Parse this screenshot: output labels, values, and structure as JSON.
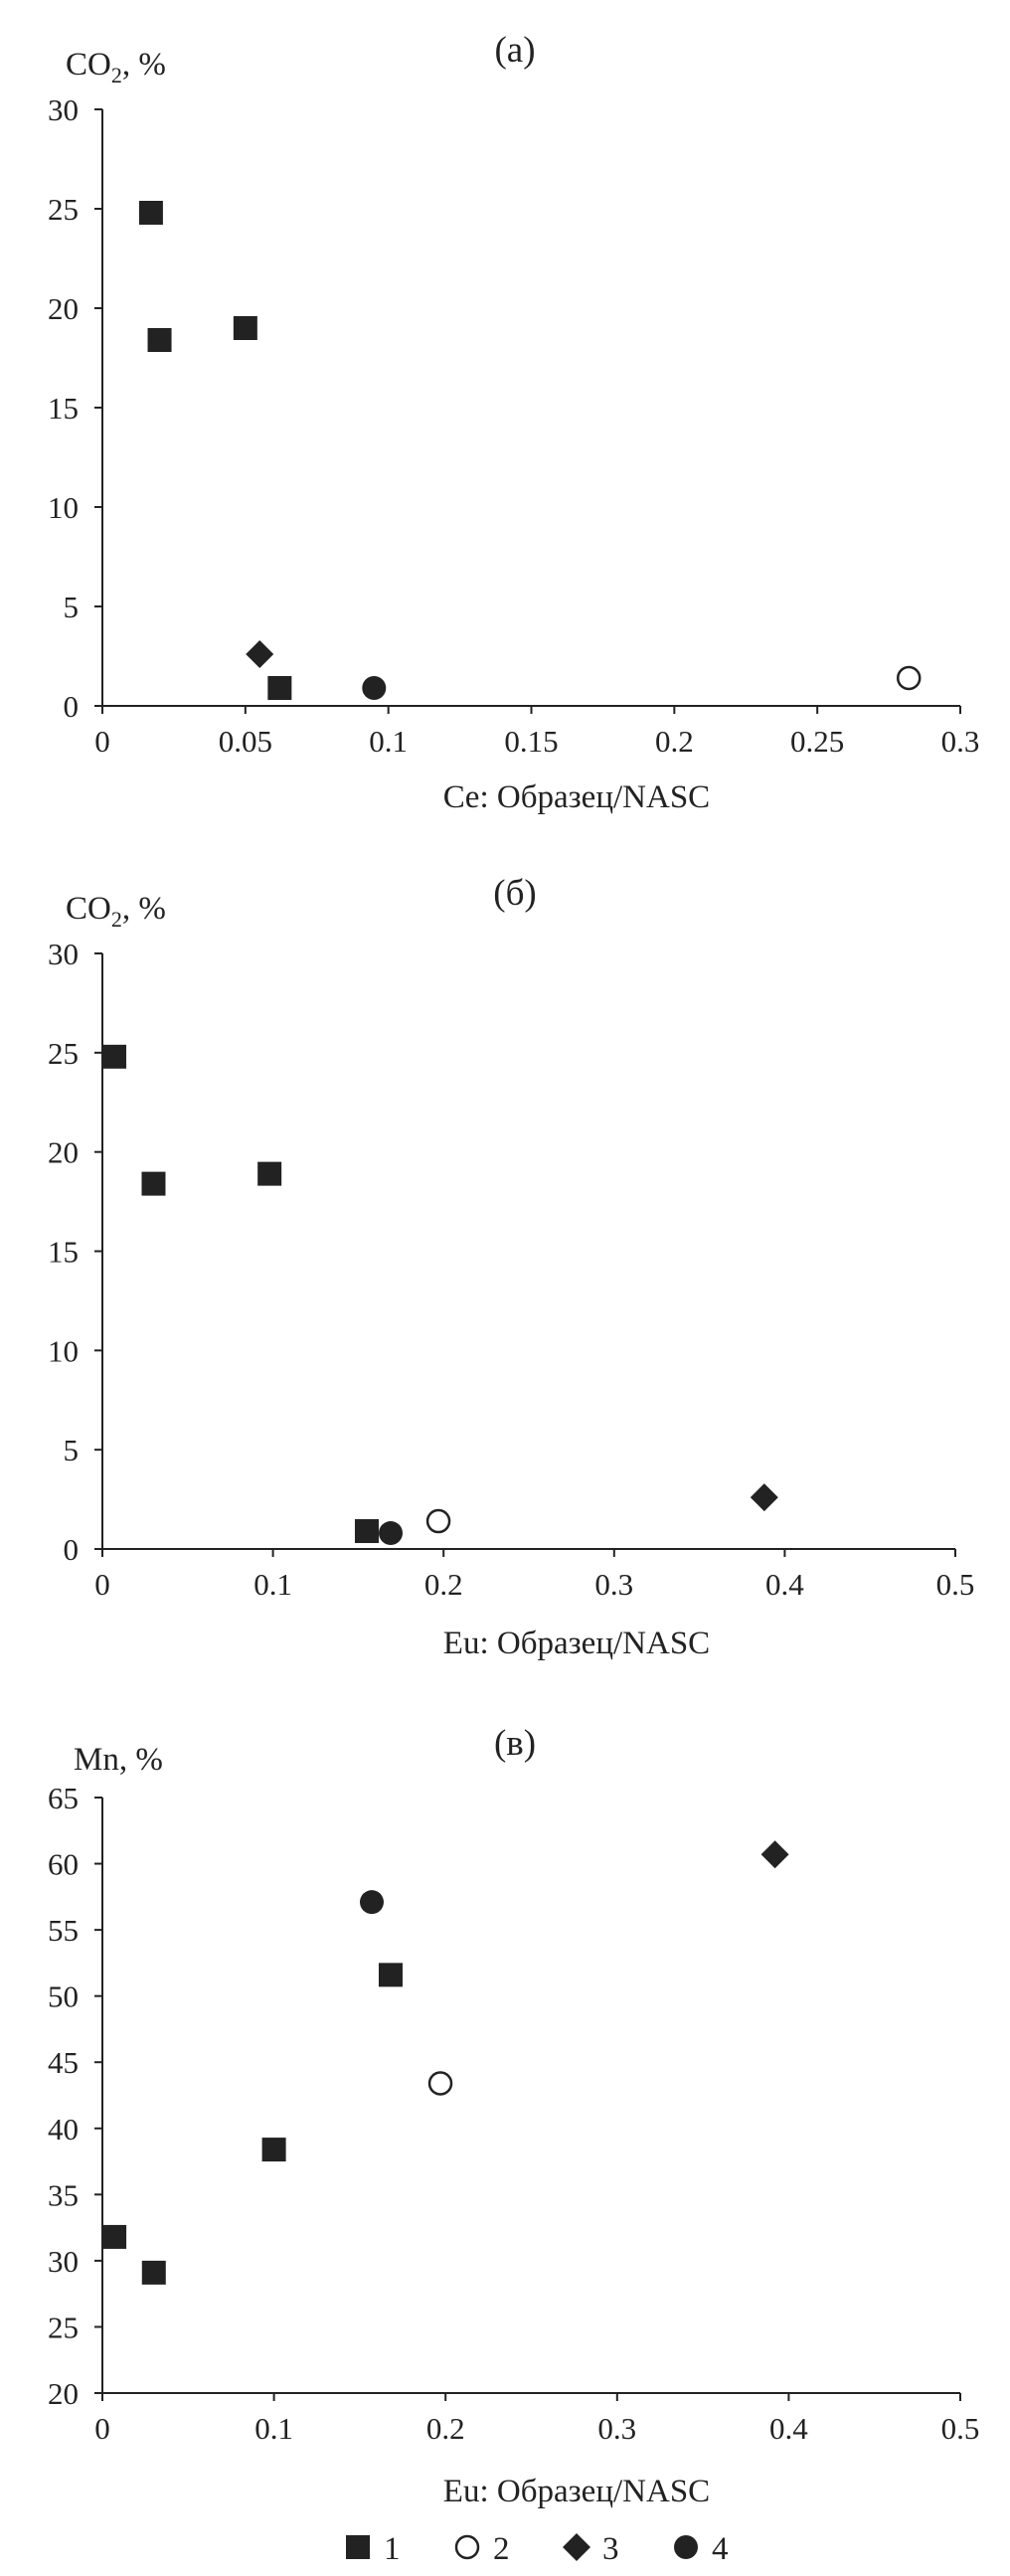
{
  "chart_data": [
    {
      "type": "scatter",
      "panel_label": "(а)",
      "ylabel": "CO",
      "ylabel_sub": "2",
      "ylabel_suffix": ", %",
      "xlabel": "Ce: Образец/NASC",
      "xlim": [
        0,
        0.3
      ],
      "ylim": [
        0,
        30
      ],
      "xticks": [
        0,
        0.05,
        0.1,
        0.15,
        0.2,
        0.25,
        0.3
      ],
      "xtick_labels": [
        "0",
        "0.05",
        "0.1",
        "0.15",
        "0.2",
        "0.25",
        "0.3"
      ],
      "yticks": [
        0,
        5,
        10,
        15,
        20,
        25,
        30
      ],
      "ytick_labels": [
        "0",
        "5",
        "10",
        "15",
        "20",
        "25",
        "30"
      ],
      "points": [
        {
          "series": "1",
          "x": 0.017,
          "y": 24.8
        },
        {
          "series": "1",
          "x": 0.02,
          "y": 18.4
        },
        {
          "series": "1",
          "x": 0.05,
          "y": 19.0
        },
        {
          "series": "1",
          "x": 0.062,
          "y": 0.9
        },
        {
          "series": "2",
          "x": 0.282,
          "y": 1.4
        },
        {
          "series": "3",
          "x": 0.055,
          "y": 2.6
        },
        {
          "series": "4",
          "x": 0.095,
          "y": 0.9
        }
      ]
    },
    {
      "type": "scatter",
      "panel_label": "(б)",
      "ylabel": "CO",
      "ylabel_sub": "2",
      "ylabel_suffix": ", %",
      "xlabel": "Eu: Образец/NASC",
      "xlim": [
        0,
        0.5
      ],
      "ylim": [
        0,
        30
      ],
      "xticks": [
        0,
        0.1,
        0.2,
        0.3,
        0.4,
        0.5
      ],
      "xtick_labels": [
        "0",
        "0.1",
        "0.2",
        "0.3",
        "0.4",
        "0.5"
      ],
      "yticks": [
        0,
        5,
        10,
        15,
        20,
        25,
        30
      ],
      "ytick_labels": [
        "0",
        "5",
        "10",
        "15",
        "20",
        "25",
        "30"
      ],
      "points": [
        {
          "series": "1",
          "x": 0.007,
          "y": 24.8
        },
        {
          "series": "1",
          "x": 0.03,
          "y": 18.4
        },
        {
          "series": "1",
          "x": 0.098,
          "y": 18.9
        },
        {
          "series": "1",
          "x": 0.155,
          "y": 0.9
        },
        {
          "series": "2",
          "x": 0.197,
          "y": 1.4
        },
        {
          "series": "3",
          "x": 0.388,
          "y": 2.6
        },
        {
          "series": "4",
          "x": 0.169,
          "y": 0.8
        }
      ]
    },
    {
      "type": "scatter",
      "panel_label": "(в)",
      "ylabel": "Mn, %",
      "ylabel_sub": "",
      "ylabel_suffix": "",
      "xlabel": "Eu: Образец/NASC",
      "xlim": [
        0,
        0.5
      ],
      "ylim": [
        20,
        65
      ],
      "xticks": [
        0,
        0.1,
        0.2,
        0.3,
        0.4,
        0.5
      ],
      "xtick_labels": [
        "0",
        "0.1",
        "0.2",
        "0.3",
        "0.4",
        "0.5"
      ],
      "yticks": [
        20,
        25,
        30,
        35,
        40,
        45,
        50,
        55,
        60,
        65
      ],
      "ytick_labels": [
        "20",
        "25",
        "30",
        "35",
        "40",
        "45",
        "50",
        "55",
        "60",
        "65"
      ],
      "points": [
        {
          "series": "1",
          "x": 0.007,
          "y": 31.8
        },
        {
          "series": "1",
          "x": 0.03,
          "y": 29.1
        },
        {
          "series": "1",
          "x": 0.1,
          "y": 38.4
        },
        {
          "series": "1",
          "x": 0.168,
          "y": 51.6
        },
        {
          "series": "2",
          "x": 0.197,
          "y": 43.4
        },
        {
          "series": "3",
          "x": 0.392,
          "y": 60.7
        },
        {
          "series": "4",
          "x": 0.157,
          "y": 57.1
        }
      ]
    }
  ],
  "legend": [
    {
      "label": "1",
      "marker": "filled-square"
    },
    {
      "label": "2",
      "marker": "open-circle"
    },
    {
      "label": "3",
      "marker": "filled-diamond"
    },
    {
      "label": "4",
      "marker": "filled-circle"
    }
  ],
  "colors": {
    "marker": "#222222",
    "axis": "#222222",
    "background": "#ffffff"
  }
}
